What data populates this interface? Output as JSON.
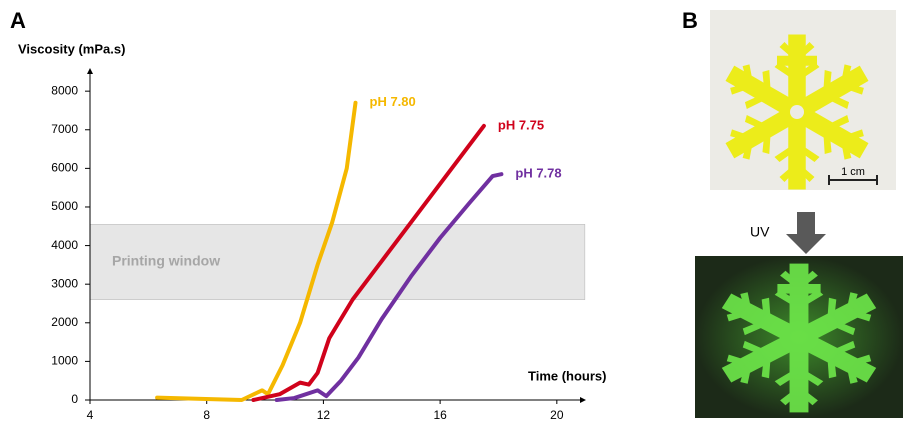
{
  "panels": [
    "A",
    "B"
  ],
  "chart_data": {
    "type": "line",
    "ylabel": "Viscosity (mPa.s)",
    "xlabel": "Time (hours)",
    "xlim": [
      4,
      21
    ],
    "ylim": [
      0,
      8600
    ],
    "xticks": [
      4,
      8,
      12,
      16,
      20
    ],
    "yticks": [
      0,
      1000,
      2000,
      3000,
      4000,
      5000,
      6000,
      7000,
      8000
    ],
    "band": {
      "label": "Printing window",
      "range": [
        2600,
        4550
      ],
      "color": "#e6e6e6"
    },
    "series": [
      {
        "name": "pH 7.80",
        "color": "#f5b800",
        "x": [
          6.3,
          9.2,
          9.9,
          10.1,
          10.6,
          11.2,
          11.8,
          12.3,
          12.8,
          13.1
        ],
        "values": [
          60,
          0,
          250,
          150,
          900,
          2000,
          3500,
          4600,
          6000,
          7700
        ]
      },
      {
        "name": "pH 7.75",
        "color": "#d0021b",
        "x": [
          9.6,
          10.5,
          11.2,
          11.5,
          11.8,
          12.2,
          13,
          14,
          15,
          16,
          17,
          17.5
        ],
        "values": [
          0,
          150,
          450,
          400,
          700,
          1600,
          2600,
          3600,
          4600,
          5600,
          6600,
          7100
        ]
      },
      {
        "name": "pH 7.78",
        "color": "#7030a0",
        "x": [
          10.4,
          11,
          11.8,
          12.1,
          12.6,
          13.2,
          14,
          15,
          16,
          17,
          17.8,
          18.1
        ],
        "values": [
          0,
          50,
          250,
          100,
          500,
          1100,
          2100,
          3200,
          4200,
          5100,
          5800,
          5850
        ]
      }
    ]
  },
  "images": {
    "scale_label": "1 cm",
    "arrow_label": "UV"
  }
}
